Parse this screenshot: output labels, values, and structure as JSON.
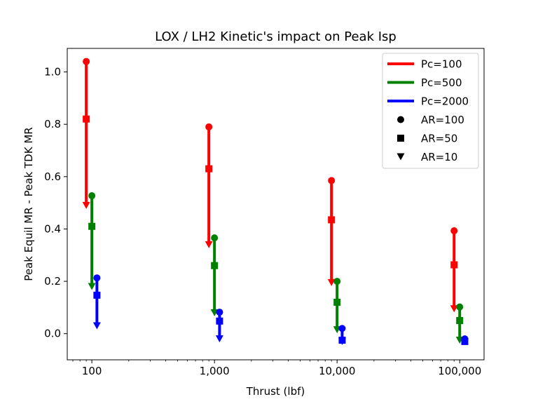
{
  "chart_data": {
    "type": "scatter",
    "title": "LOX / LH2 Kinetic's impact on Peak Isp",
    "xlabel": "Thrust (lbf)",
    "ylabel": "Peak Equil MR - Peak TDK MR",
    "xscale": "log",
    "xlim": [
      63,
      158000
    ],
    "ylim": [
      -0.1,
      1.09
    ],
    "xticks": [
      {
        "value": 100,
        "label": "100"
      },
      {
        "value": 1000,
        "label": "1,000"
      },
      {
        "value": 10000,
        "label": "10,000"
      },
      {
        "value": 100000,
        "label": "100,000"
      }
    ],
    "yticks": [
      {
        "value": 0.0,
        "label": "0.0"
      },
      {
        "value": 0.2,
        "label": "0.2"
      },
      {
        "value": 0.4,
        "label": "0.4"
      },
      {
        "value": 0.6,
        "label": "0.6"
      },
      {
        "value": 0.8,
        "label": "0.8"
      },
      {
        "value": 1.0,
        "label": "1.0"
      }
    ],
    "legend_position": "top-right",
    "legend": [
      {
        "label": "Pc=100",
        "kind": "line",
        "color": "#ff0000"
      },
      {
        "label": "Pc=500",
        "kind": "line",
        "color": "#008000"
      },
      {
        "label": "Pc=2000",
        "kind": "line",
        "color": "#0000ff"
      },
      {
        "label": "AR=100",
        "kind": "marker",
        "marker": "circle",
        "color": "#000000"
      },
      {
        "label": "AR=50",
        "kind": "marker",
        "marker": "square",
        "color": "#000000"
      },
      {
        "label": "AR=10",
        "kind": "marker",
        "marker": "triangle-down",
        "color": "#000000"
      }
    ],
    "series": [
      {
        "name": "Pc=100",
        "color": "#ff0000",
        "points": [
          {
            "x": 90,
            "AR100": 1.04,
            "AR50": 0.82,
            "AR10": 0.49
          },
          {
            "x": 900,
            "AR100": 0.79,
            "AR50": 0.63,
            "AR10": 0.34
          },
          {
            "x": 9000,
            "AR100": 0.585,
            "AR50": 0.435,
            "AR10": 0.195
          },
          {
            "x": 90000,
            "AR100": 0.393,
            "AR50": 0.263,
            "AR10": 0.095
          }
        ]
      },
      {
        "name": "Pc=500",
        "color": "#008000",
        "points": [
          {
            "x": 100,
            "AR100": 0.527,
            "AR50": 0.41,
            "AR10": 0.18
          },
          {
            "x": 1000,
            "AR100": 0.366,
            "AR50": 0.26,
            "AR10": 0.08
          },
          {
            "x": 10000,
            "AR100": 0.2,
            "AR50": 0.12,
            "AR10": 0.015
          },
          {
            "x": 100000,
            "AR100": 0.102,
            "AR50": 0.05,
            "AR10": -0.025
          }
        ]
      },
      {
        "name": "Pc=2000",
        "color": "#0000ff",
        "points": [
          {
            "x": 110,
            "AR100": 0.213,
            "AR50": 0.147,
            "AR10": 0.03
          },
          {
            "x": 1100,
            "AR100": 0.082,
            "AR50": 0.048,
            "AR10": -0.02
          },
          {
            "x": 11000,
            "AR100": 0.02,
            "AR50": -0.025,
            "AR10": -0.03
          },
          {
            "x": 110000,
            "AR100": -0.02,
            "AR50": -0.03,
            "AR10": -0.03
          }
        ]
      }
    ]
  }
}
